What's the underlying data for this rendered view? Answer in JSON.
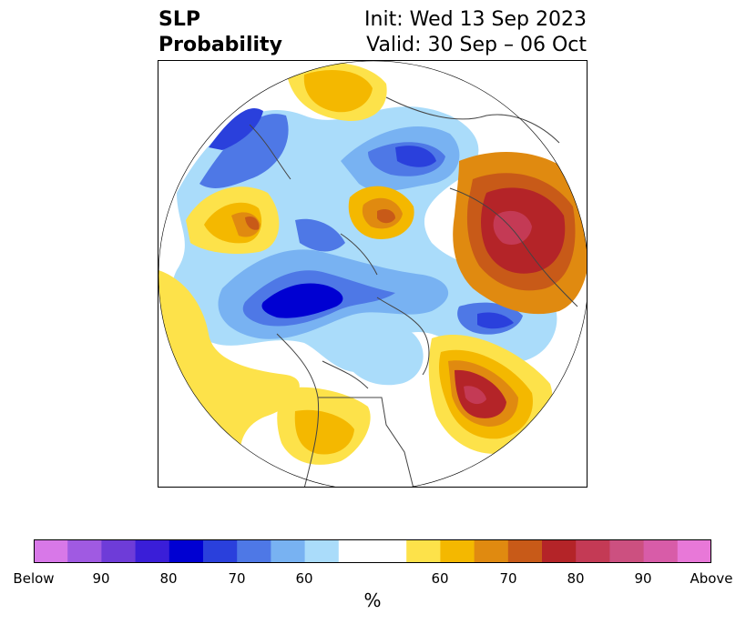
{
  "header": {
    "title_line1": "SLP",
    "title_line2": "Probability",
    "init_text": "Init: Wed 13 Sep 2023",
    "valid_text": "Valid: 30 Sep – 06 Oct"
  },
  "colorbar": {
    "unit": "%",
    "colors": [
      "#d878e8",
      "#a05ae2",
      "#6e3cd8",
      "#3a1ed8",
      "#0000d2",
      "#2a40dc",
      "#4e78e6",
      "#78b2f2",
      "#aadcfa",
      "#ffffff",
      "#ffffff",
      "#fde24a",
      "#f4b800",
      "#e08a10",
      "#c85a18",
      "#b42428",
      "#c43a55",
      "#cc5080",
      "#d85ca8",
      "#e878d8"
    ],
    "tick_labels": [
      "Below",
      "90",
      "80",
      "70",
      "60",
      "60",
      "70",
      "80",
      "90",
      "Above"
    ]
  },
  "map": {
    "projection": "north-polar-stereographic",
    "variable": "SLP"
  }
}
